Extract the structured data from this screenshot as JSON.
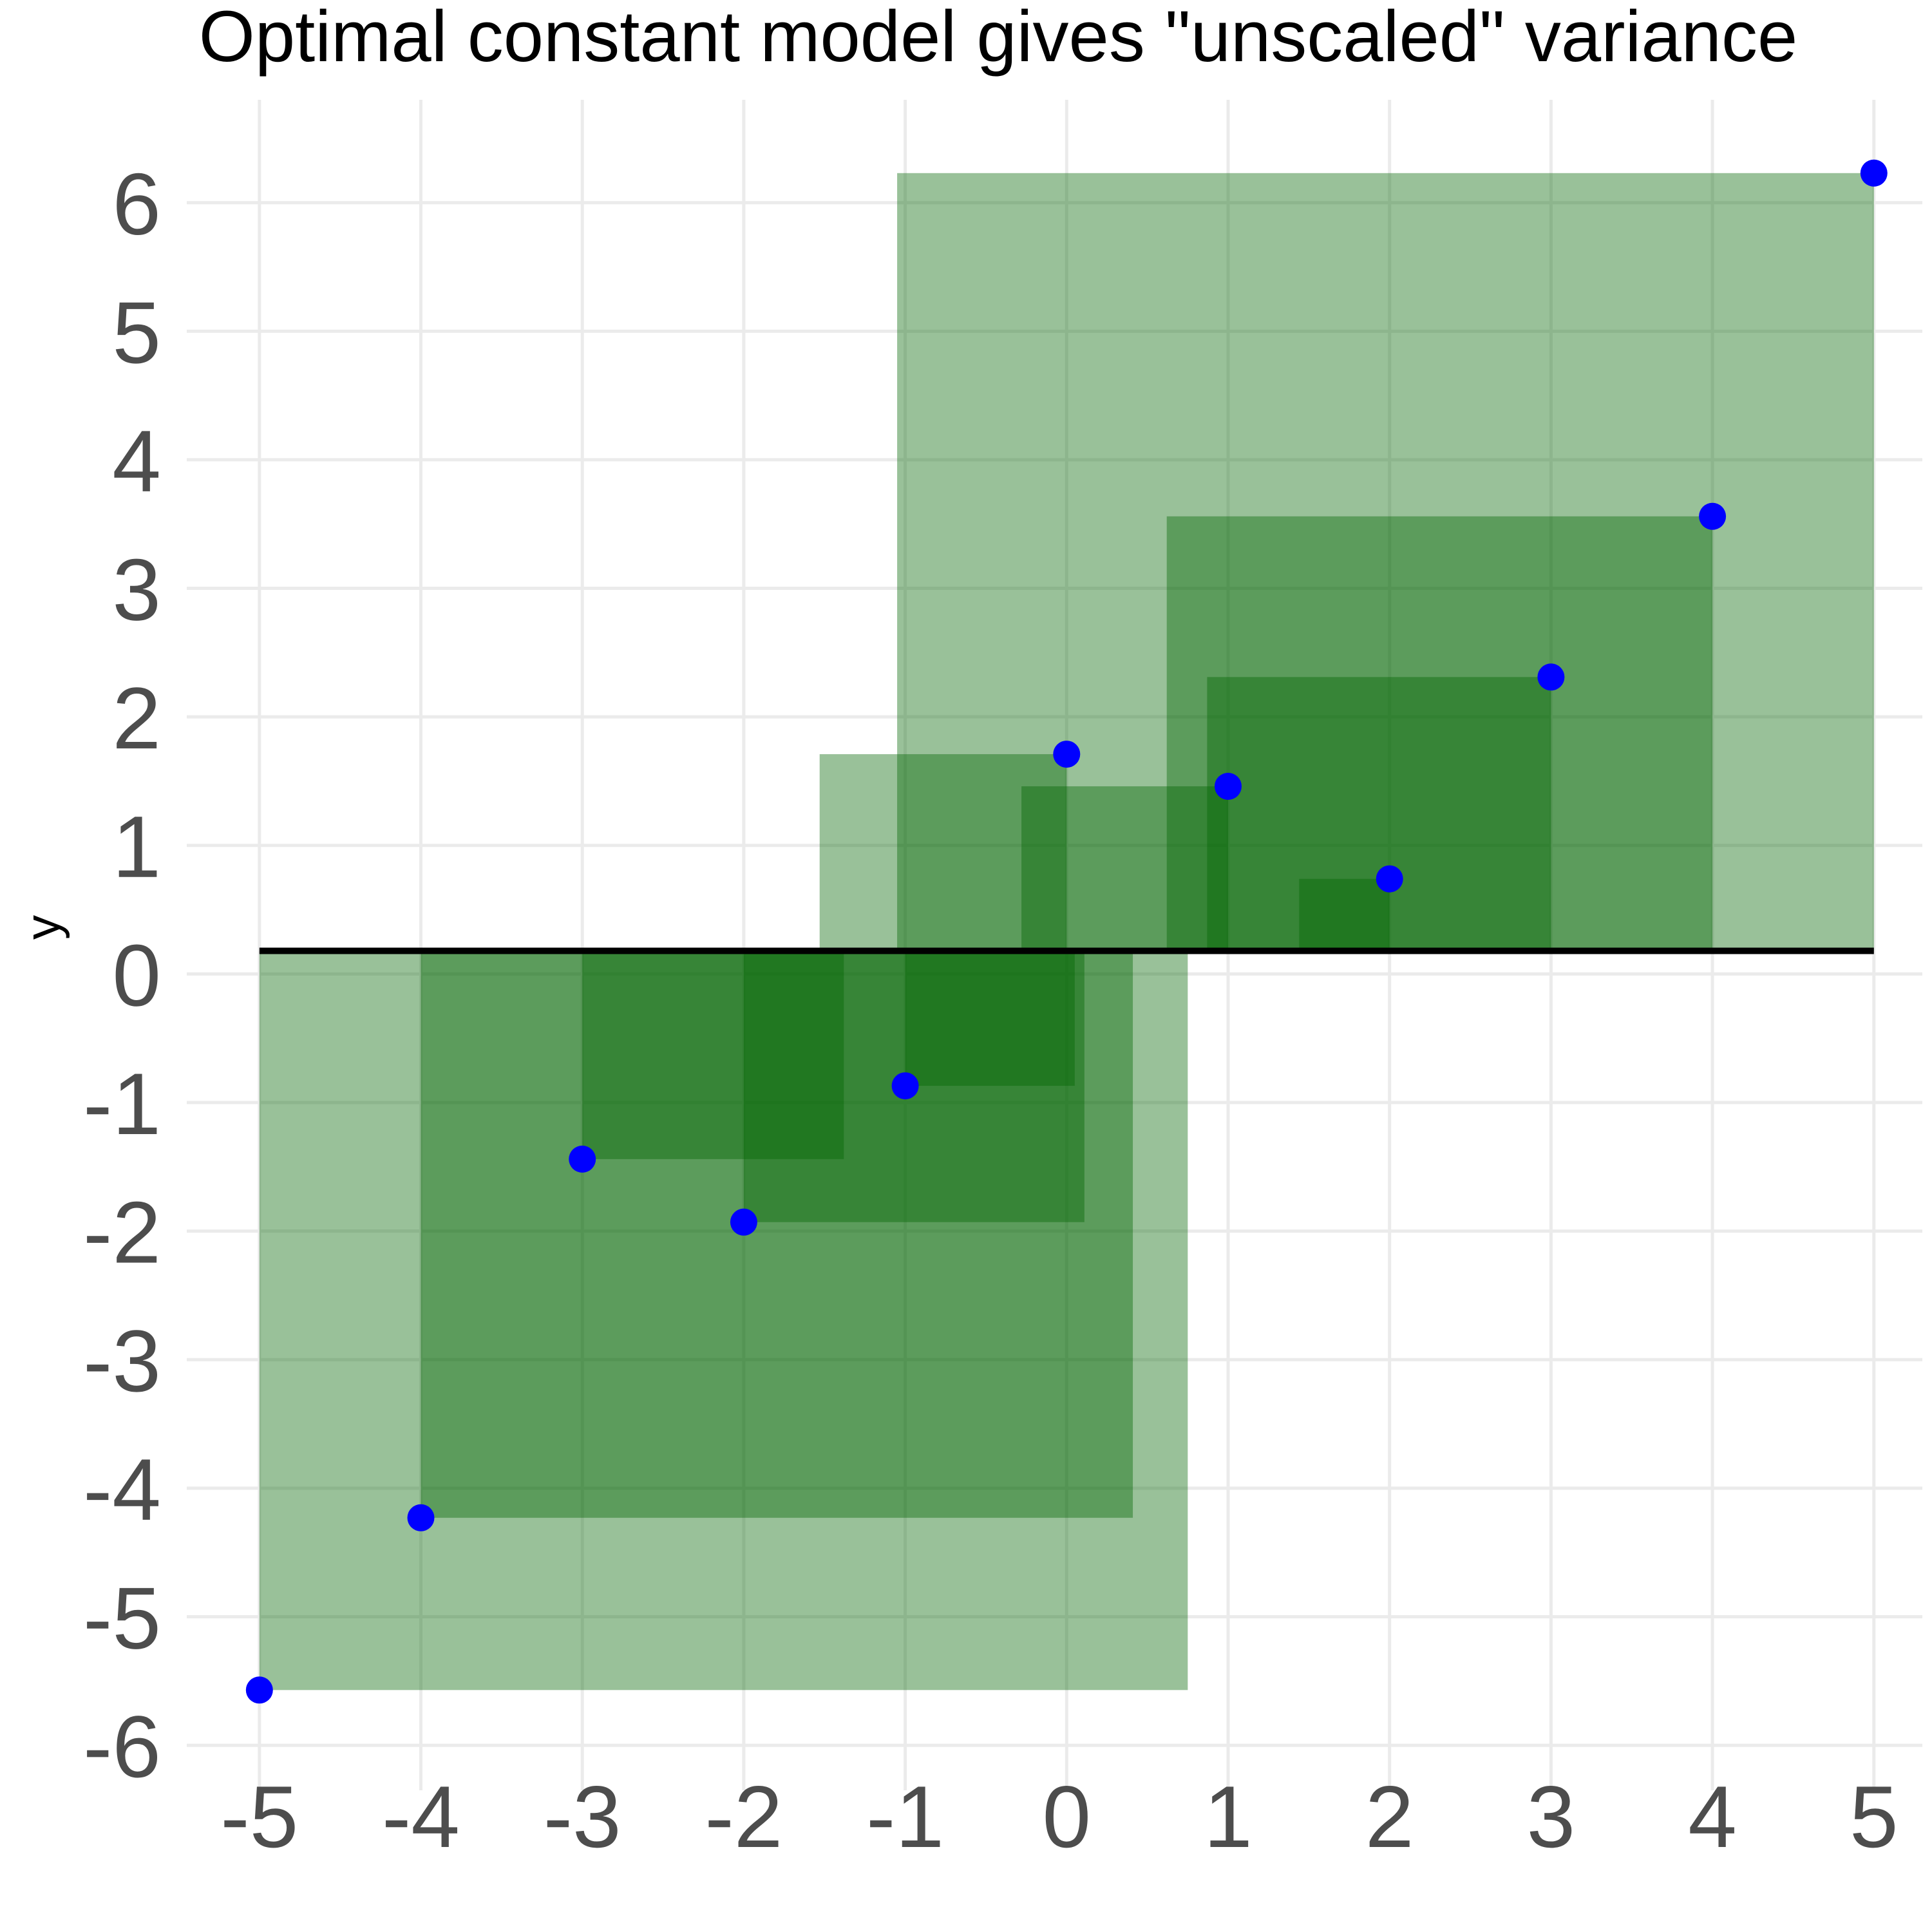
{
  "chart_data": {
    "type": "scatter",
    "title": "Optimal constant model gives \"unscaled\" variance",
    "xlabel": "",
    "ylabel": "y",
    "xlim": [
      -5.45,
      5.3
    ],
    "ylim": [
      -6.35,
      6.8
    ],
    "x_ticks": [
      -5,
      -4,
      -3,
      -2,
      -1,
      0,
      1,
      2,
      3,
      4,
      5
    ],
    "x_tick_labels": [
      "-5",
      "-4",
      "-3",
      "-2",
      "-1",
      "0",
      "1",
      "2",
      "3",
      "4",
      "5"
    ],
    "y_ticks": [
      -6,
      -5,
      -4,
      -3,
      -2,
      -1,
      0,
      1,
      2,
      3,
      4,
      5,
      6
    ],
    "y_tick_labels": [
      "-6",
      "-5",
      "-4",
      "-3",
      "-2",
      "-1",
      "0",
      "1",
      "2",
      "3",
      "4",
      "5",
      "6"
    ],
    "grid": true,
    "constant_model_value": 0.18,
    "points": [
      {
        "x": -5,
        "y": -5.57
      },
      {
        "x": -4,
        "y": -4.23
      },
      {
        "x": -3,
        "y": -1.44
      },
      {
        "x": -2,
        "y": -1.93
      },
      {
        "x": -1,
        "y": -0.87
      },
      {
        "x": 0,
        "y": 1.71
      },
      {
        "x": 1,
        "y": 1.46
      },
      {
        "x": 2,
        "y": 0.74
      },
      {
        "x": 3,
        "y": 2.31
      },
      {
        "x": 4,
        "y": 3.56
      },
      {
        "x": 5,
        "y": 6.23
      }
    ],
    "squared_residuals_shown": true,
    "colors": {
      "point": "#0000ff",
      "square": "#006400",
      "line": "#000000",
      "grid": "#ebebeb",
      "tick_text": "#4d4d4d"
    }
  }
}
